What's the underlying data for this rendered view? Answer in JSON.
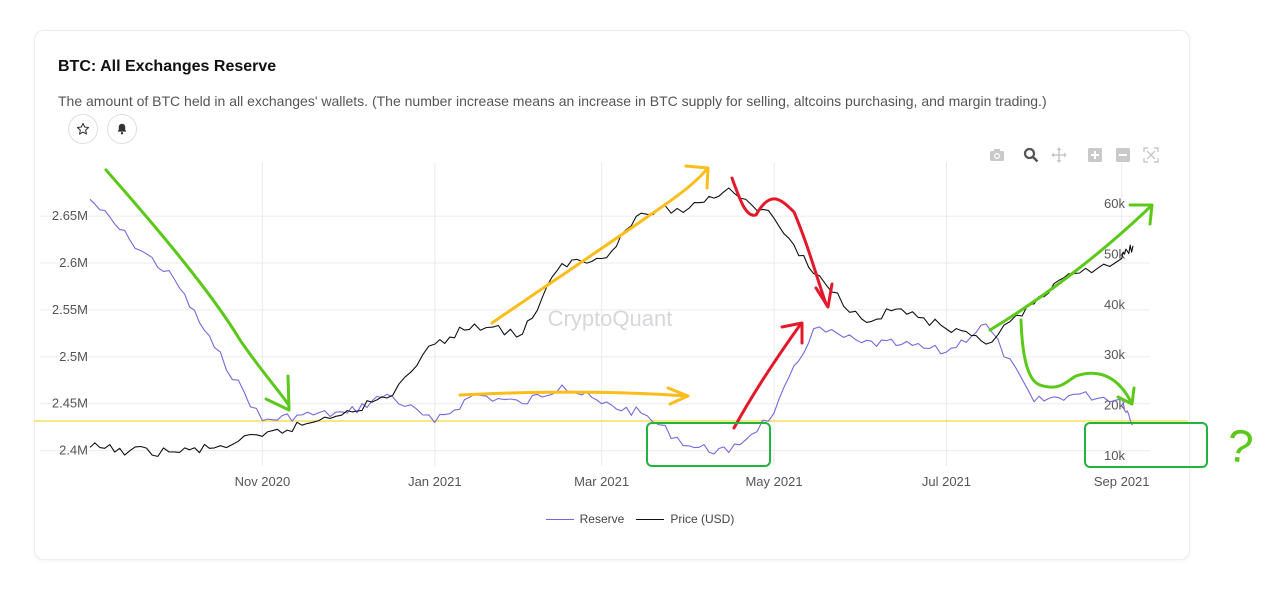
{
  "card": {
    "title": "BTC: All Exchanges Reserve",
    "description": "The amount of BTC held in all exchanges' wallets. (The number increase means an increase in BTC supply for selling, altcoins purchasing, and margin trading.)"
  },
  "icons": {
    "star": "star-icon",
    "bell": "bell-icon",
    "toolbar": [
      "camera-icon",
      "zoom-icon",
      "pan-icon",
      "zoom-in-icon",
      "zoom-out-icon",
      "autoscale-icon"
    ]
  },
  "watermark": "CryptoQuant",
  "annotation_mark": "?",
  "colors": {
    "reserve": "#7469e0",
    "price": "#111111",
    "green": "#5bc81a",
    "orange": "#fbbd1c",
    "red": "#e2192a",
    "box": "#22b43c",
    "baseline": "#f5d63c"
  },
  "chart_data": {
    "type": "line",
    "title": "BTC: All Exchanges Reserve",
    "x_ticks": [
      "Nov 2020",
      "Jan 2021",
      "Mar 2021",
      "May 2021",
      "Jul 2021",
      "Sep 2021"
    ],
    "y_left_ticks": [
      "2.4M",
      "2.45M",
      "2.5M",
      "2.55M",
      "2.6M",
      "2.65M"
    ],
    "y_right_ticks": [
      "10k",
      "20k",
      "30k",
      "40k",
      "50k",
      "60k"
    ],
    "y_left_range": [
      2.39,
      2.68
    ],
    "y_right_range": [
      9000,
      63000
    ],
    "legend_position": "bottom-center",
    "grid": true,
    "x": [
      "2020-09-01",
      "2020-09-15",
      "2020-10-01",
      "2020-10-15",
      "2020-11-01",
      "2020-11-15",
      "2020-12-01",
      "2020-12-15",
      "2021-01-01",
      "2021-01-15",
      "2021-02-01",
      "2021-02-15",
      "2021-03-01",
      "2021-03-15",
      "2021-04-01",
      "2021-04-15",
      "2021-05-01",
      "2021-05-15",
      "2021-06-01",
      "2021-06-15",
      "2021-07-01",
      "2021-07-15",
      "2021-08-01",
      "2021-08-15",
      "2021-09-01",
      "2021-09-05"
    ],
    "series": [
      {
        "name": "Reserve",
        "axis": "left",
        "values": [
          2.668,
          2.625,
          2.582,
          2.51,
          2.432,
          2.438,
          2.44,
          2.46,
          2.43,
          2.46,
          2.45,
          2.47,
          2.45,
          2.44,
          2.405,
          2.398,
          2.44,
          2.53,
          2.515,
          2.513,
          2.505,
          2.535,
          2.452,
          2.46,
          2.455,
          2.428
        ]
      },
      {
        "name": "Price (USD)",
        "axis": "right",
        "values": [
          11500,
          10800,
          10600,
          11400,
          13700,
          15900,
          18800,
          21300,
          32000,
          36000,
          34000,
          48000,
          49000,
          58000,
          59000,
          63000,
          57000,
          46000,
          37000,
          39000,
          35000,
          32000,
          40000,
          46000,
          49000,
          51500
        ]
      }
    ]
  },
  "legend": {
    "reserve_label": "Reserve",
    "price_label": "Price (USD)"
  }
}
